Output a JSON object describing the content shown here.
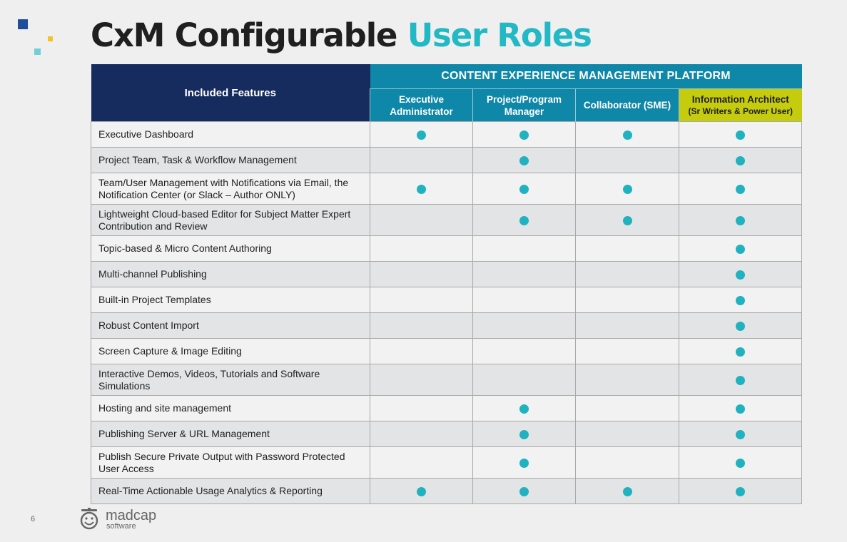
{
  "title": {
    "part1": "CxM Configurable",
    "part2": "User Roles"
  },
  "table": {
    "feature_header": "Included Features",
    "platform_header": "CONTENT EXPERIENCE MANAGEMENT PLATFORM",
    "roles": [
      {
        "line1": "Executive",
        "line2": "Administrator"
      },
      {
        "line1": "Project/Program",
        "line2": "Manager"
      },
      {
        "line1": "Collaborator (SME)",
        "line2": ""
      },
      {
        "line1": "Information Architect",
        "line2": "(Sr Writers & Power User)"
      }
    ],
    "rows": [
      {
        "feature": "Executive Dashboard",
        "marks": [
          true,
          true,
          true,
          true
        ]
      },
      {
        "feature": "Project Team, Task & Workflow Management",
        "marks": [
          false,
          true,
          false,
          true
        ]
      },
      {
        "feature": "Team/User Management with Notifications via Email, the Notification Center (or Slack – Author ONLY)",
        "marks": [
          true,
          true,
          true,
          true
        ]
      },
      {
        "feature": "Lightweight Cloud-based Editor for Subject Matter Expert Contribution and Review",
        "marks": [
          false,
          true,
          true,
          true
        ]
      },
      {
        "feature": "Topic-based & Micro Content Authoring",
        "marks": [
          false,
          false,
          false,
          true
        ]
      },
      {
        "feature": "Multi-channel Publishing",
        "marks": [
          false,
          false,
          false,
          true
        ]
      },
      {
        "feature": "Built-in Project Templates",
        "marks": [
          false,
          false,
          false,
          true
        ]
      },
      {
        "feature": "Robust Content Import",
        "marks": [
          false,
          false,
          false,
          true
        ]
      },
      {
        "feature": "Screen Capture & Image Editing",
        "marks": [
          false,
          false,
          false,
          true
        ]
      },
      {
        "feature": "Interactive Demos, Videos, Tutorials and Software Simulations",
        "marks": [
          false,
          false,
          false,
          true
        ]
      },
      {
        "feature": "Hosting and site management",
        "marks": [
          false,
          true,
          false,
          true
        ]
      },
      {
        "feature": "Publishing Server & URL Management",
        "marks": [
          false,
          true,
          false,
          true
        ]
      },
      {
        "feature": "Publish Secure Private Output with Password Protected User Access",
        "marks": [
          false,
          true,
          false,
          true
        ]
      },
      {
        "feature": "Real-Time Actionable Usage Analytics & Reporting",
        "marks": [
          true,
          true,
          true,
          true
        ]
      }
    ]
  },
  "footer": {
    "page_number": "6",
    "logo_name": "madcap",
    "logo_sub": "software"
  },
  "colors": {
    "title_accent": "#22b8c4",
    "header_navy": "#162c5f",
    "header_teal": "#0f87a8",
    "highlight_role": "#c5cc0e",
    "dot": "#20b2be"
  }
}
